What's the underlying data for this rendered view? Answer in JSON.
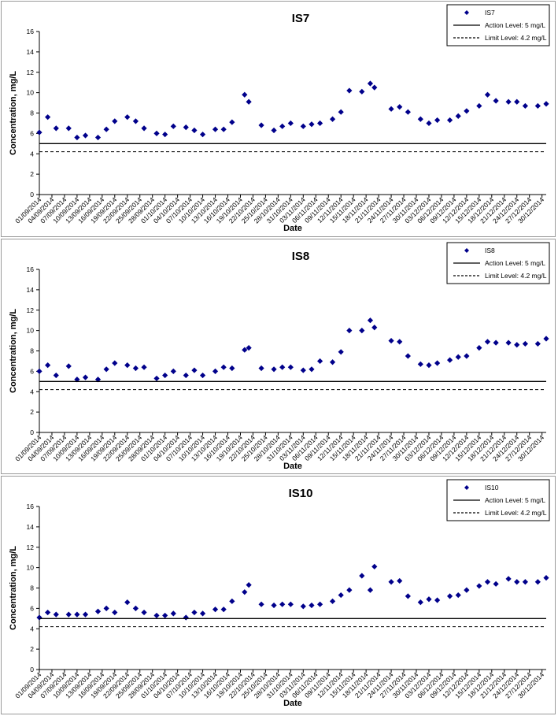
{
  "chart_data": [
    {
      "type": "scatter",
      "title": "IS7",
      "xlabel": "Date",
      "ylabel": "Concentration, mg/L",
      "ylim": [
        0,
        16
      ],
      "yticks": [
        "0",
        "2",
        "4",
        "6",
        "8",
        "10",
        "12",
        "14",
        "16"
      ],
      "xlim": [
        "2014-09-01",
        "2014-12-31"
      ],
      "x_tick_labels": [
        "01/09/2014",
        "04/09/2014",
        "07/09/2014",
        "10/09/2014",
        "13/09/2014",
        "16/09/2014",
        "19/09/2014",
        "22/09/2014",
        "25/09/2014",
        "28/09/2014",
        "01/10/2014",
        "04/10/2014",
        "07/10/2014",
        "10/10/2014",
        "13/10/2014",
        "16/10/2014",
        "19/10/2014",
        "22/10/2014",
        "25/10/2014",
        "28/10/2014",
        "31/10/2014",
        "03/11/2014",
        "06/11/2014",
        "09/11/2014",
        "12/11/2014",
        "15/11/2014",
        "18/11/2014",
        "21/11/2014",
        "24/11/2014",
        "27/11/2014",
        "30/11/2014",
        "03/12/2014",
        "06/12/2014",
        "09/12/2014",
        "12/12/2014",
        "15/12/2014",
        "18/12/2014",
        "21/12/2014",
        "24/12/2014",
        "27/12/2014",
        "30/12/2014"
      ],
      "grid": false,
      "legend_position": "top-right",
      "series": [
        {
          "name": "IS7",
          "color": "#00008b",
          "marker": "diamond",
          "x": [
            "2014-09-01",
            "2014-09-03",
            "2014-09-05",
            "2014-09-08",
            "2014-09-10",
            "2014-09-12",
            "2014-09-15",
            "2014-09-17",
            "2014-09-19",
            "2014-09-22",
            "2014-09-24",
            "2014-09-26",
            "2014-09-29",
            "2014-10-01",
            "2014-10-03",
            "2014-10-06",
            "2014-10-08",
            "2014-10-10",
            "2014-10-13",
            "2014-10-15",
            "2014-10-17",
            "2014-10-20",
            "2014-10-21",
            "2014-10-24",
            "2014-10-27",
            "2014-10-29",
            "2014-10-31",
            "2014-11-03",
            "2014-11-05",
            "2014-11-07",
            "2014-11-10",
            "2014-11-12",
            "2014-11-14",
            "2014-11-17",
            "2014-11-19",
            "2014-11-20",
            "2014-11-24",
            "2014-11-26",
            "2014-11-28",
            "2014-12-01",
            "2014-12-03",
            "2014-12-05",
            "2014-12-08",
            "2014-12-10",
            "2014-12-12",
            "2014-12-15",
            "2014-12-17",
            "2014-12-19",
            "2014-12-22",
            "2014-12-24",
            "2014-12-26",
            "2014-12-29",
            "2014-12-31"
          ],
          "values": [
            6.1,
            7.6,
            6.5,
            6.5,
            5.6,
            5.8,
            5.6,
            6.4,
            7.2,
            7.6,
            7.2,
            6.5,
            6.0,
            5.9,
            6.7,
            6.6,
            6.3,
            5.9,
            6.4,
            6.4,
            7.1,
            9.8,
            9.1,
            6.8,
            6.3,
            6.7,
            7.0,
            6.7,
            6.9,
            7.0,
            7.4,
            8.1,
            10.2,
            10.1,
            10.9,
            10.5,
            8.4,
            8.6,
            8.1,
            7.4,
            7.0,
            7.3,
            7.3,
            7.7,
            8.2,
            8.7,
            9.8,
            9.2,
            9.1,
            9.1,
            8.7,
            8.7,
            8.9
          ]
        },
        {
          "name": "Action Level: 5 mg/L",
          "type": "hline",
          "value": 5,
          "style": "solid",
          "color": "#000000"
        },
        {
          "name": "Limit Level: 4.2 mg/L",
          "type": "hline",
          "value": 4.2,
          "style": "dashed",
          "color": "#000000"
        }
      ]
    },
    {
      "type": "scatter",
      "title": "IS8",
      "xlabel": "Date",
      "ylabel": "Concentration, mg/L",
      "ylim": [
        0,
        16
      ],
      "yticks": [
        "0",
        "2",
        "4",
        "6",
        "8",
        "10",
        "12",
        "14",
        "16"
      ],
      "xlim": [
        "2014-09-01",
        "2014-12-31"
      ],
      "x_tick_labels": [
        "01/09/2014",
        "04/09/2014",
        "07/09/2014",
        "10/09/2014",
        "13/09/2014",
        "16/09/2014",
        "19/09/2014",
        "22/09/2014",
        "25/09/2014",
        "28/09/2014",
        "01/10/2014",
        "04/10/2014",
        "07/10/2014",
        "10/10/2014",
        "13/10/2014",
        "16/10/2014",
        "19/10/2014",
        "22/10/2014",
        "25/10/2014",
        "28/10/2014",
        "31/10/2014",
        "03/11/2014",
        "06/11/2014",
        "09/11/2014",
        "12/11/2014",
        "15/11/2014",
        "18/11/2014",
        "21/11/2014",
        "24/11/2014",
        "27/11/2014",
        "30/11/2014",
        "03/12/2014",
        "06/12/2014",
        "09/12/2014",
        "12/12/2014",
        "15/12/2014",
        "18/12/2014",
        "21/12/2014",
        "24/12/2014",
        "27/12/2014",
        "30/12/2014"
      ],
      "grid": false,
      "legend_position": "top-right",
      "series": [
        {
          "name": "IS8",
          "color": "#00008b",
          "marker": "diamond",
          "x": [
            "2014-09-01",
            "2014-09-03",
            "2014-09-05",
            "2014-09-08",
            "2014-09-10",
            "2014-09-12",
            "2014-09-15",
            "2014-09-17",
            "2014-09-19",
            "2014-09-22",
            "2014-09-24",
            "2014-09-26",
            "2014-09-29",
            "2014-10-01",
            "2014-10-03",
            "2014-10-06",
            "2014-10-08",
            "2014-10-10",
            "2014-10-13",
            "2014-10-15",
            "2014-10-17",
            "2014-10-20",
            "2014-10-21",
            "2014-10-24",
            "2014-10-27",
            "2014-10-29",
            "2014-10-31",
            "2014-11-03",
            "2014-11-05",
            "2014-11-07",
            "2014-11-10",
            "2014-11-12",
            "2014-11-14",
            "2014-11-17",
            "2014-11-19",
            "2014-11-20",
            "2014-11-24",
            "2014-11-26",
            "2014-11-28",
            "2014-12-01",
            "2014-12-03",
            "2014-12-05",
            "2014-12-08",
            "2014-12-10",
            "2014-12-12",
            "2014-12-15",
            "2014-12-17",
            "2014-12-19",
            "2014-12-22",
            "2014-12-24",
            "2014-12-26",
            "2014-12-29",
            "2014-12-31"
          ],
          "values": [
            6.0,
            6.6,
            5.6,
            6.5,
            5.2,
            5.4,
            5.2,
            6.2,
            6.8,
            6.6,
            6.3,
            6.4,
            5.3,
            5.6,
            6.0,
            5.6,
            6.1,
            5.6,
            6.0,
            6.4,
            6.3,
            8.1,
            8.3,
            6.3,
            6.2,
            6.4,
            6.4,
            6.1,
            6.2,
            7.0,
            6.9,
            7.9,
            10.0,
            10.0,
            11.0,
            10.3,
            9.0,
            8.9,
            7.5,
            6.7,
            6.6,
            6.8,
            7.1,
            7.4,
            7.5,
            8.3,
            8.9,
            8.8,
            8.8,
            8.6,
            8.7,
            8.7,
            9.2
          ]
        },
        {
          "name": "Action Level: 5 mg/L",
          "type": "hline",
          "value": 5,
          "style": "solid",
          "color": "#000000"
        },
        {
          "name": "Limit Level: 4.2 mg/L",
          "type": "hline",
          "value": 4.2,
          "style": "dashed",
          "color": "#000000"
        }
      ]
    },
    {
      "type": "scatter",
      "title": "IS10",
      "xlabel": "Date",
      "ylabel": "Concentration, mg/L",
      "ylim": [
        0,
        16
      ],
      "yticks": [
        "0",
        "2",
        "4",
        "6",
        "8",
        "10",
        "12",
        "14",
        "16"
      ],
      "xlim": [
        "2014-09-01",
        "2014-12-31"
      ],
      "x_tick_labels": [
        "01/09/2014",
        "04/09/2014",
        "07/09/2014",
        "10/09/2014",
        "13/09/2014",
        "16/09/2014",
        "19/09/2014",
        "22/09/2014",
        "25/09/2014",
        "28/09/2014",
        "01/10/2014",
        "04/10/2014",
        "07/10/2014",
        "10/10/2014",
        "13/10/2014",
        "16/10/2014",
        "19/10/2014",
        "22/10/2014",
        "25/10/2014",
        "28/10/2014",
        "31/10/2014",
        "03/11/2014",
        "06/11/2014",
        "09/11/2014",
        "12/11/2014",
        "15/11/2014",
        "18/11/2014",
        "21/11/2014",
        "24/11/2014",
        "27/11/2014",
        "30/11/2014",
        "03/12/2014",
        "06/12/2014",
        "09/12/2014",
        "12/12/2014",
        "15/12/2014",
        "18/12/2014",
        "21/12/2014",
        "24/12/2014",
        "27/12/2014",
        "30/12/2014"
      ],
      "grid": false,
      "legend_position": "top-right",
      "series": [
        {
          "name": "IS10",
          "color": "#00008b",
          "marker": "diamond",
          "x": [
            "2014-09-01",
            "2014-09-03",
            "2014-09-05",
            "2014-09-08",
            "2014-09-10",
            "2014-09-12",
            "2014-09-15",
            "2014-09-17",
            "2014-09-19",
            "2014-09-22",
            "2014-09-24",
            "2014-09-26",
            "2014-09-29",
            "2014-10-01",
            "2014-10-03",
            "2014-10-06",
            "2014-10-08",
            "2014-10-10",
            "2014-10-13",
            "2014-10-15",
            "2014-10-17",
            "2014-10-20",
            "2014-10-21",
            "2014-10-24",
            "2014-10-27",
            "2014-10-29",
            "2014-10-31",
            "2014-11-03",
            "2014-11-05",
            "2014-11-07",
            "2014-11-10",
            "2014-11-12",
            "2014-11-14",
            "2014-11-17",
            "2014-11-19",
            "2014-11-20",
            "2014-11-24",
            "2014-11-26",
            "2014-11-28",
            "2014-12-01",
            "2014-12-03",
            "2014-12-05",
            "2014-12-08",
            "2014-12-10",
            "2014-12-12",
            "2014-12-15",
            "2014-12-17",
            "2014-12-19",
            "2014-12-22",
            "2014-12-24",
            "2014-12-26",
            "2014-12-29",
            "2014-12-31"
          ],
          "values": [
            5.1,
            5.6,
            5.4,
            5.4,
            5.4,
            5.4,
            5.7,
            6.0,
            5.6,
            6.6,
            6.0,
            5.6,
            5.3,
            5.3,
            5.5,
            5.1,
            5.6,
            5.5,
            5.9,
            5.9,
            6.7,
            7.6,
            8.3,
            6.4,
            6.3,
            6.4,
            6.4,
            6.2,
            6.3,
            6.4,
            6.7,
            7.3,
            7.8,
            9.2,
            7.8,
            10.1,
            8.6,
            8.7,
            7.2,
            6.6,
            6.9,
            6.8,
            7.2,
            7.3,
            7.8,
            8.2,
            8.6,
            8.4,
            8.9,
            8.6,
            8.6,
            8.6,
            9.0
          ]
        },
        {
          "name": "Action Level: 5 mg/L",
          "type": "hline",
          "value": 5,
          "style": "solid",
          "color": "#000000"
        },
        {
          "name": "Limit Level: 4.2 mg/L",
          "type": "hline",
          "value": 4.2,
          "style": "dashed",
          "color": "#000000"
        }
      ]
    }
  ]
}
